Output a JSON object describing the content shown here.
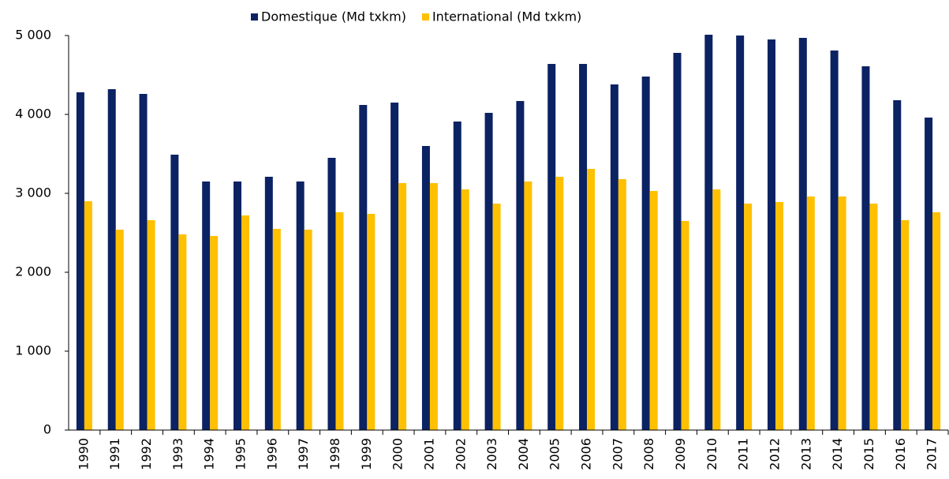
{
  "chart_data": {
    "type": "bar",
    "categories": [
      "1990",
      "1991",
      "1992",
      "1993",
      "1994",
      "1995",
      "1996",
      "1997",
      "1998",
      "1999",
      "2000",
      "2001",
      "2002",
      "2003",
      "2004",
      "2005",
      "2006",
      "2007",
      "2008",
      "2009",
      "2010",
      "2011",
      "2012",
      "2013",
      "2014",
      "2015",
      "2016",
      "2017"
    ],
    "series": [
      {
        "name": "Domestique (Md txkm)",
        "color": "#0b2263",
        "values": [
          4280,
          4320,
          4260,
          3490,
          3150,
          3150,
          3210,
          3150,
          3450,
          4120,
          4150,
          3600,
          3910,
          4020,
          4170,
          4640,
          4640,
          4380,
          4480,
          4780,
          5010,
          5000,
          4950,
          4970,
          4810,
          4610,
          4180,
          3960
        ]
      },
      {
        "name": "International (Md txkm)",
        "color": "#ffc000",
        "values": [
          2900,
          2540,
          2660,
          2480,
          2460,
          2720,
          2550,
          2540,
          2760,
          2740,
          3130,
          3130,
          3050,
          2870,
          3150,
          3210,
          3310,
          3180,
          3030,
          2650,
          3050,
          2870,
          2890,
          2960,
          2960,
          2870,
          2660,
          2760
        ]
      }
    ],
    "ylim": [
      0,
      5000
    ],
    "yticks": [
      0,
      {
        "value": 1000,
        "label": "1 000"
      },
      {
        "value": 2000,
        "label": "2 000"
      },
      {
        "value": 3000,
        "label": "3 000"
      },
      {
        "value": 4000,
        "label": "4 000"
      },
      {
        "value": 5000,
        "label": "5 000"
      }
    ],
    "legend": "top"
  }
}
